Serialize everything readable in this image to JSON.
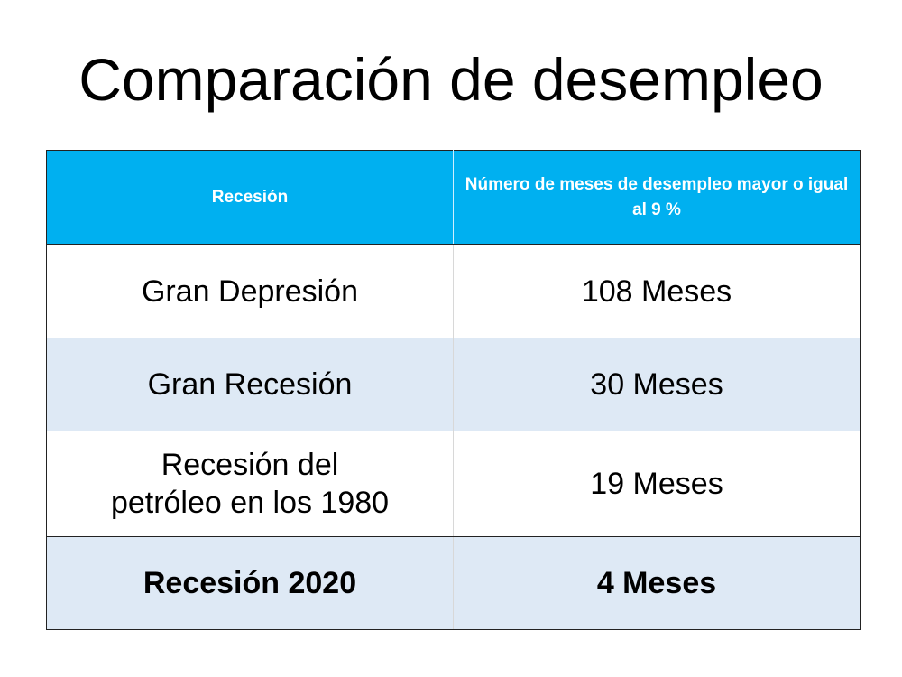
{
  "title": "Comparación de desempleo",
  "colors": {
    "header": "#00B0F0",
    "alt_row": "#DEE9F5"
  },
  "table": {
    "headers": [
      "Recesión",
      "Número de meses de desempleo mayor o igual al 9 %"
    ],
    "rows": [
      {
        "recession": "Gran Depresión",
        "months": "108 Meses"
      },
      {
        "recession": "Gran Recesión",
        "months": "30 Meses"
      },
      {
        "recession": "Recesión del petróleo en los 1980",
        "months": "19 Meses"
      },
      {
        "recession": "Recesión 2020",
        "months": "4 Meses"
      }
    ]
  }
}
